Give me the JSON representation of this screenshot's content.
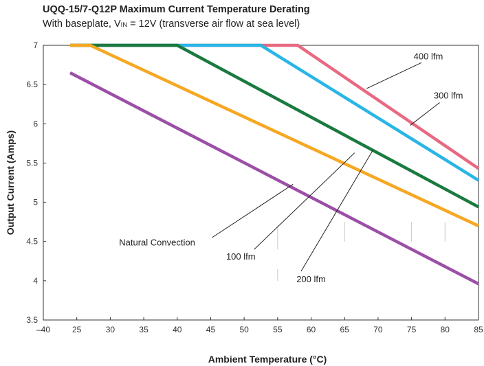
{
  "chart_data": {
    "type": "line",
    "title": "UQQ-15/7-Q12P Maximum Current Temperature Derating",
    "subtitle": {
      "prefix": "With baseplate, V",
      "subscript": "IN",
      "suffix": " = 12V (transverse air flow at sea level)"
    },
    "xlabel": "Ambient Temperature (°C)",
    "ylabel": "Output Current (Amps)",
    "x_tick_labels": [
      "–40",
      "25",
      "30",
      "35",
      "40",
      "45",
      "50",
      "55",
      "60",
      "65",
      "70",
      "75",
      "80",
      "85"
    ],
    "y_ticks": [
      3.5,
      4,
      4.5,
      5,
      5.5,
      6,
      6.5,
      7
    ],
    "y_tick_labels": [
      "3.5",
      "4",
      "4.5",
      "5",
      "5.5",
      "6",
      "6.5",
      "7"
    ],
    "ylim": [
      3.5,
      7
    ],
    "grid": "partial vertical gridlines",
    "series": [
      {
        "name": "400 lfm",
        "color": "#e86a82",
        "x": [
          24,
          58,
          85
        ],
        "y": [
          7.0,
          7.0,
          5.43
        ]
      },
      {
        "name": "300 lfm",
        "color": "#29b6e6",
        "x": [
          24,
          52.5,
          85
        ],
        "y": [
          7.0,
          7.0,
          5.28
        ]
      },
      {
        "name": "200 lfm",
        "color": "#1a7a40",
        "x": [
          24,
          40,
          85
        ],
        "y": [
          7.0,
          7.0,
          4.94
        ]
      },
      {
        "name": "100 lfm",
        "color": "#f6a823",
        "x": [
          24,
          27,
          85
        ],
        "y": [
          7.0,
          7.0,
          4.7
        ]
      },
      {
        "name": "Natural Convection",
        "color": "#9b4fa6",
        "x": [
          24,
          85
        ],
        "y": [
          6.65,
          3.96
        ]
      }
    ],
    "annotations": [
      {
        "text": "400 lfm"
      },
      {
        "text": "300 lfm"
      },
      {
        "text": "200 lfm"
      },
      {
        "text": "100 lfm"
      },
      {
        "text": "Natural Convection"
      }
    ]
  }
}
